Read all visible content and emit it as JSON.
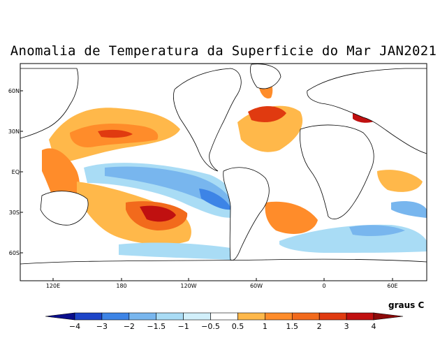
{
  "title": "Anomalia de Temperatura da Superficie do Mar JAN2021",
  "lat_labels": [
    "60N",
    "30N",
    "EQ",
    "30S",
    "60S"
  ],
  "lon_labels": [
    "120E",
    "180",
    "120W",
    "60W",
    "0",
    "60E"
  ],
  "colorbar": {
    "units": "graus C",
    "ticks": [
      "-4",
      "-3",
      "-2",
      "-1.5",
      "-1",
      "-0.5",
      "0.5",
      "1",
      "1.5",
      "2",
      "3",
      "4"
    ],
    "colors": [
      "#0a0e8c",
      "#1d44c8",
      "#3d84e6",
      "#78b6ee",
      "#a9dcf5",
      "#d2f0fb",
      "#ffffff",
      "#ffb84a",
      "#ff8c2a",
      "#f26a1c",
      "#e03a10",
      "#c01010",
      "#8c0a0a"
    ]
  },
  "palette": {
    "land": "#ffffff",
    "coast": "#000000"
  }
}
